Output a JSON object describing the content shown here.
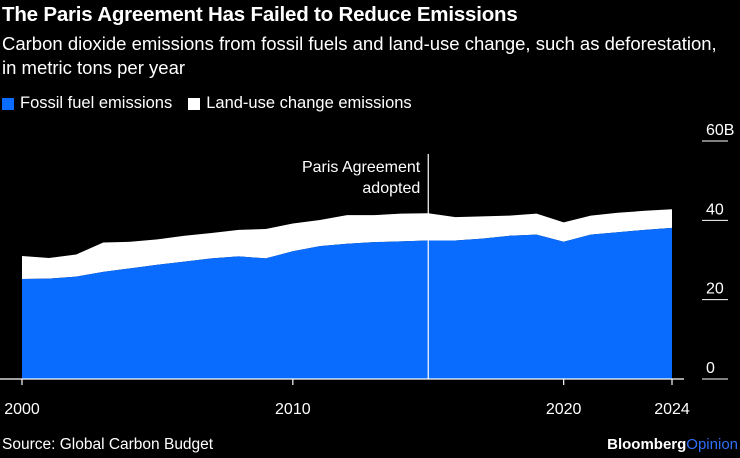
{
  "title": "The Paris Agreement Has Failed to Reduce Emissions",
  "subtitle": "Carbon dioxide emissions from fossil fuels and land-use change, such as deforestation, in metric tons per year",
  "source": "Source: Global Carbon Budget",
  "brand": {
    "name": "Bloomberg",
    "section": "Opinion"
  },
  "colors": {
    "background": "#000000",
    "fossil": "#0a6cff",
    "landuse": "#ffffff",
    "brand_accent": "#2f6ff5"
  },
  "chart_data": {
    "type": "area",
    "stacked": true,
    "x": [
      2000,
      2001,
      2002,
      2003,
      2004,
      2005,
      2006,
      2007,
      2008,
      2009,
      2010,
      2011,
      2012,
      2013,
      2014,
      2015,
      2016,
      2017,
      2018,
      2019,
      2020,
      2021,
      2022,
      2023,
      2024
    ],
    "series": [
      {
        "name": "Fossil fuel emissions",
        "color": "#0a6cff",
        "values": [
          25.2,
          25.3,
          25.8,
          27.0,
          27.9,
          28.8,
          29.6,
          30.4,
          30.9,
          30.4,
          32.2,
          33.5,
          34.1,
          34.5,
          34.7,
          34.9,
          34.9,
          35.4,
          36.1,
          36.4,
          34.6,
          36.4,
          37.0,
          37.6,
          38.1
        ]
      },
      {
        "name": "Land-use change emissions",
        "color": "#ffffff",
        "values": [
          5.8,
          5.2,
          5.6,
          7.4,
          6.7,
          6.4,
          6.5,
          6.4,
          6.7,
          7.4,
          7.0,
          6.6,
          7.2,
          6.8,
          7.0,
          6.9,
          5.9,
          5.6,
          5.1,
          5.3,
          4.9,
          4.8,
          4.9,
          4.8,
          4.7
        ]
      }
    ],
    "x_ticks": [
      "2000",
      "2010",
      "2020",
      "2024"
    ],
    "y_ticks": [
      "0",
      "20",
      "40",
      "60B"
    ],
    "ylim": [
      0,
      60
    ],
    "xlim": [
      2000,
      2024
    ],
    "legend_position": "top-left",
    "annotation": {
      "x": 2015,
      "line1": "Paris Agreement",
      "line2": "adopted"
    },
    "grid": false
  }
}
